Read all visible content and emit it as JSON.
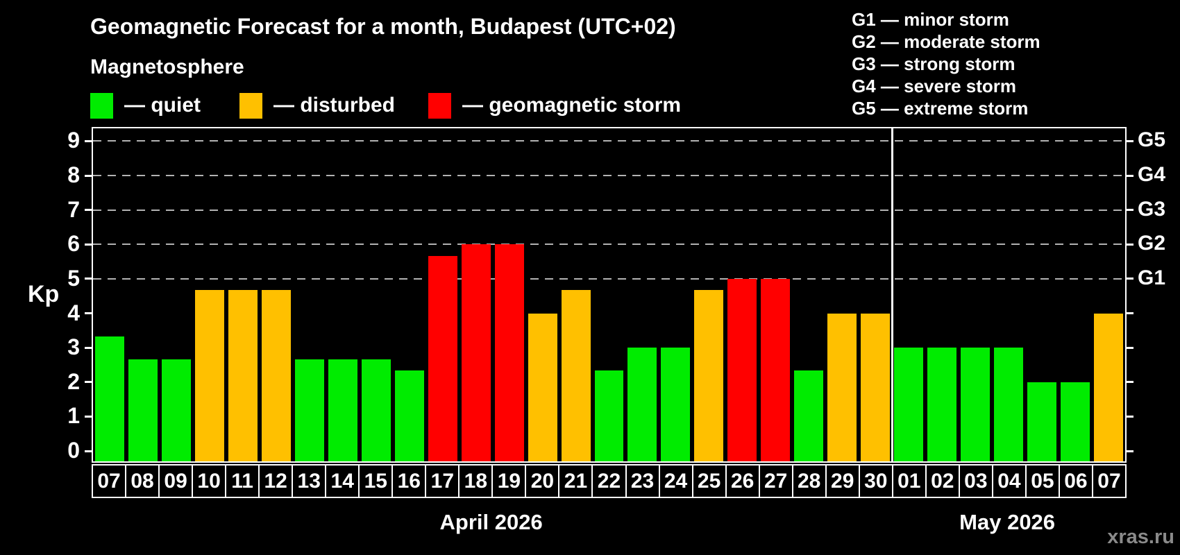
{
  "title": "Geomagnetic Forecast for a month, Budapest (UTC+02)",
  "subtitle": "Magnetosphere",
  "legend": {
    "items": [
      {
        "label": "— quiet",
        "level": "quiet"
      },
      {
        "label": "— disturbed",
        "level": "disturbed"
      },
      {
        "label": "— geomagnetic storm",
        "level": "storm"
      }
    ]
  },
  "g_legend": [
    "G1 — minor storm",
    "G2 — moderate storm",
    "G3 — strong storm",
    "G4 — severe storm",
    "G5 — extreme storm"
  ],
  "watermark": "xras.ru",
  "colors": {
    "quiet": "#00ec00",
    "disturbed": "#ffc000",
    "storm": "#ff0000",
    "grid": "#b3b3b3",
    "axis": "#ffffff",
    "watermark": "#8a8a8a",
    "background": "#000000"
  },
  "chart_data": {
    "type": "bar",
    "title": "Geomagnetic Forecast for a month, Budapest (UTC+02)",
    "ylabel": "Kp",
    "ylim": [
      -0.3,
      9.37
    ],
    "y_ticks": [
      0,
      1,
      2,
      3,
      4,
      5,
      6,
      7,
      8,
      9
    ],
    "gridlines": [
      5,
      6,
      7,
      8,
      9
    ],
    "grid": true,
    "legend_position": "top-left",
    "right_axis": [
      {
        "label": "G1",
        "kp": 5
      },
      {
        "label": "G2",
        "kp": 6
      },
      {
        "label": "G3",
        "kp": 7
      },
      {
        "label": "G4",
        "kp": 8
      },
      {
        "label": "G5",
        "kp": 9
      }
    ],
    "months": [
      {
        "label": "April 2026",
        "days": 24
      },
      {
        "label": "May 2026",
        "days": 7
      }
    ],
    "bars": [
      {
        "day": "07",
        "kp": 3.33,
        "level": "quiet"
      },
      {
        "day": "08",
        "kp": 2.67,
        "level": "quiet"
      },
      {
        "day": "09",
        "kp": 2.67,
        "level": "quiet"
      },
      {
        "day": "10",
        "kp": 4.67,
        "level": "disturbed"
      },
      {
        "day": "11",
        "kp": 4.67,
        "level": "disturbed"
      },
      {
        "day": "12",
        "kp": 4.67,
        "level": "disturbed"
      },
      {
        "day": "13",
        "kp": 2.67,
        "level": "quiet"
      },
      {
        "day": "14",
        "kp": 2.67,
        "level": "quiet"
      },
      {
        "day": "15",
        "kp": 2.67,
        "level": "quiet"
      },
      {
        "day": "16",
        "kp": 2.33,
        "level": "quiet"
      },
      {
        "day": "17",
        "kp": 5.67,
        "level": "storm"
      },
      {
        "day": "18",
        "kp": 6,
        "level": "storm"
      },
      {
        "day": "19",
        "kp": 6,
        "level": "storm"
      },
      {
        "day": "20",
        "kp": 4,
        "level": "disturbed"
      },
      {
        "day": "21",
        "kp": 4.67,
        "level": "disturbed"
      },
      {
        "day": "22",
        "kp": 2.33,
        "level": "quiet"
      },
      {
        "day": "23",
        "kp": 3,
        "level": "quiet"
      },
      {
        "day": "24",
        "kp": 3,
        "level": "quiet"
      },
      {
        "day": "25",
        "kp": 4.67,
        "level": "disturbed"
      },
      {
        "day": "26",
        "kp": 5,
        "level": "storm"
      },
      {
        "day": "27",
        "kp": 5,
        "level": "storm"
      },
      {
        "day": "28",
        "kp": 2.33,
        "level": "quiet"
      },
      {
        "day": "29",
        "kp": 4,
        "level": "disturbed"
      },
      {
        "day": "30",
        "kp": 4,
        "level": "disturbed"
      },
      {
        "day": "01",
        "kp": 3,
        "level": "quiet"
      },
      {
        "day": "02",
        "kp": 3,
        "level": "quiet"
      },
      {
        "day": "03",
        "kp": 3,
        "level": "quiet"
      },
      {
        "day": "04",
        "kp": 3,
        "level": "quiet"
      },
      {
        "day": "05",
        "kp": 2,
        "level": "quiet"
      },
      {
        "day": "06",
        "kp": 2,
        "level": "quiet"
      },
      {
        "day": "07",
        "kp": 4,
        "level": "disturbed"
      }
    ]
  }
}
